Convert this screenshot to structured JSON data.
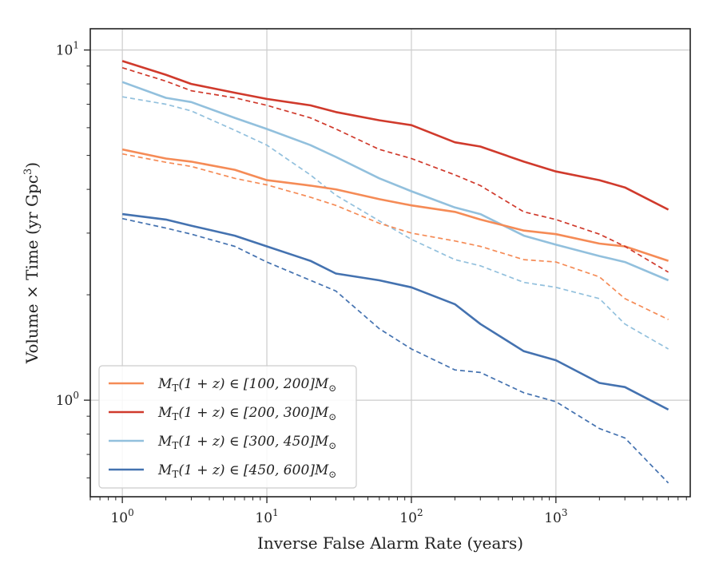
{
  "chart_data": {
    "type": "line",
    "title": "",
    "xlabel": "Inverse False Alarm Rate (years)",
    "ylabel": "Volume × Time (yr Gpc³)",
    "xscale": "log",
    "yscale": "log",
    "xlim": [
      0.6,
      8500
    ],
    "ylim": [
      0.53,
      11.5
    ],
    "grid": true,
    "legend_position": "lower-left",
    "x_ticks": [
      {
        "value": 1,
        "base": "10",
        "exp": "0"
      },
      {
        "value": 10,
        "base": "10",
        "exp": "1"
      },
      {
        "value": 100,
        "base": "10",
        "exp": "2"
      },
      {
        "value": 1000,
        "base": "10",
        "exp": "3"
      }
    ],
    "y_ticks": [
      {
        "value": 1,
        "base": "10",
        "exp": "0"
      },
      {
        "value": 10,
        "base": "10",
        "exp": "1"
      }
    ],
    "x": [
      1,
      2,
      3,
      6,
      10,
      20,
      30,
      60,
      100,
      200,
      300,
      600,
      1000,
      2000,
      3000,
      6000
    ],
    "series": [
      {
        "name": "M_T(1+z) ∈ [100, 200] M_⊙",
        "label_parts": [
          "M",
          "T",
          "(1 + z) ∈ [100, 200]M",
          "⊙"
        ],
        "color": "#f58b56",
        "solid": [
          5.2,
          4.9,
          4.8,
          4.55,
          4.25,
          4.1,
          4.0,
          3.75,
          3.6,
          3.45,
          3.28,
          3.05,
          2.98,
          2.8,
          2.75,
          2.5
        ],
        "dashed": [
          5.05,
          4.78,
          4.65,
          4.3,
          4.12,
          3.8,
          3.6,
          3.2,
          3.0,
          2.85,
          2.75,
          2.52,
          2.48,
          2.25,
          1.95,
          1.7
        ]
      },
      {
        "name": "M_T(1+z) ∈ [200, 300] M_⊙",
        "label_parts": [
          "M",
          "T",
          "(1 + z) ∈ [200, 300]M",
          "⊙"
        ],
        "color": "#d03a2c",
        "solid": [
          9.3,
          8.5,
          8.0,
          7.55,
          7.25,
          6.95,
          6.65,
          6.3,
          6.1,
          5.45,
          5.3,
          4.8,
          4.5,
          4.25,
          4.05,
          3.5
        ],
        "dashed": [
          8.9,
          8.15,
          7.65,
          7.3,
          6.95,
          6.4,
          5.95,
          5.2,
          4.9,
          4.4,
          4.1,
          3.45,
          3.28,
          2.98,
          2.75,
          2.32
        ]
      },
      {
        "name": "M_T(1+z) ∈ [300, 450] M_⊙",
        "label_parts": [
          "M",
          "T",
          "(1 + z) ∈ [300, 450]M",
          "⊙"
        ],
        "color": "#92c0dd",
        "solid": [
          8.1,
          7.3,
          7.1,
          6.4,
          5.95,
          5.35,
          4.95,
          4.3,
          3.95,
          3.55,
          3.4,
          2.95,
          2.78,
          2.58,
          2.48,
          2.2
        ],
        "dashed": [
          7.35,
          7.0,
          6.7,
          5.9,
          5.35,
          4.4,
          3.85,
          3.25,
          2.88,
          2.52,
          2.42,
          2.17,
          2.1,
          1.95,
          1.65,
          1.4
        ]
      },
      {
        "name": "M_T(1+z) ∈ [450, 600] M_⊙",
        "label_parts": [
          "M",
          "T",
          "(1 + z) ∈ [450, 600]M",
          "⊙"
        ],
        "color": "#4472b0",
        "solid": [
          3.4,
          3.28,
          3.15,
          2.95,
          2.75,
          2.5,
          2.3,
          2.2,
          2.1,
          1.88,
          1.65,
          1.38,
          1.3,
          1.12,
          1.09,
          0.94
        ],
        "dashed": [
          3.3,
          3.1,
          2.98,
          2.75,
          2.48,
          2.2,
          2.05,
          1.6,
          1.4,
          1.22,
          1.2,
          1.05,
          0.99,
          0.83,
          0.78,
          0.58
        ]
      }
    ]
  }
}
